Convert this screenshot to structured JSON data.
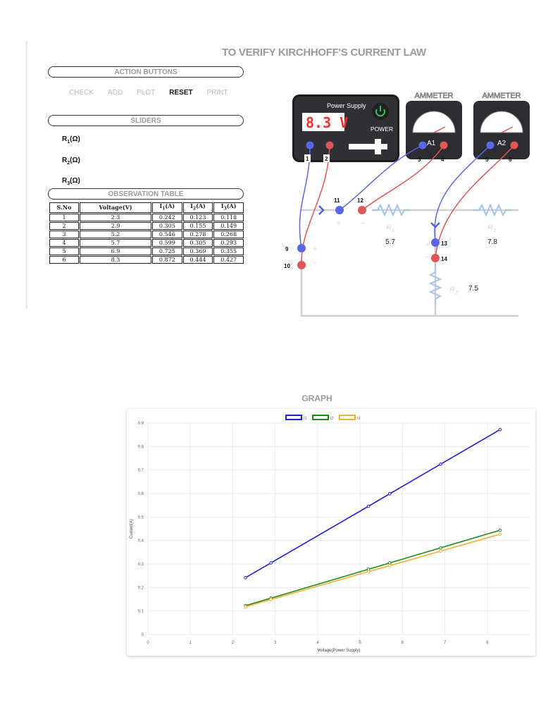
{
  "title": "TO VERIFY KIRCHHOFF'S CURRENT LAW",
  "action_buttons": {
    "header": "ACTION BUTTONS",
    "items": [
      {
        "label": "CHECK",
        "active": false
      },
      {
        "label": "ADD",
        "active": false
      },
      {
        "label": "PLOT",
        "active": false
      },
      {
        "label": "RESET",
        "active": true
      },
      {
        "label": "PRINT",
        "active": false
      }
    ]
  },
  "sliders": {
    "header": "SLIDERS",
    "r1": {
      "base": "R",
      "sub": "1",
      "unit": "(Ω)"
    },
    "r2": {
      "base": "R",
      "sub": "2",
      "unit": "(Ω)"
    },
    "r3": {
      "base": "R",
      "sub": "3",
      "unit": "(Ω)"
    }
  },
  "observation_table": {
    "header": "OBSERVATION TABLE",
    "columns": {
      "sno": "S.No",
      "voltage": "Voltage(V)",
      "i1": {
        "base": "I",
        "sub": "1",
        "unit": "(A)"
      },
      "i2": {
        "base": "I",
        "sub": "2",
        "unit": "(A)"
      },
      "i3": {
        "base": "I",
        "sub": "3",
        "unit": "(A)"
      }
    },
    "rows": [
      [
        "1",
        "2.3",
        "0.242",
        "0.123",
        "0.118"
      ],
      [
        "2",
        "2.9",
        "0.305",
        "0.155",
        "0.149"
      ],
      [
        "3",
        "5.2",
        "0.546",
        "0.278",
        "0.268"
      ],
      [
        "4",
        "5.7",
        "0.599",
        "0.305",
        "0.293"
      ],
      [
        "5",
        "6.9",
        "0.725",
        "0.369",
        "0.355"
      ],
      [
        "6",
        "8.3",
        "0.872",
        "0.444",
        "0.427"
      ]
    ]
  },
  "circuit": {
    "power_supply": {
      "label": "Power Supply",
      "display": "8.3 V",
      "power_label": "POWER",
      "terminal_plus": "1",
      "terminal_minus": "2"
    },
    "ammeters": [
      {
        "label": "AMMETER",
        "name": "A1",
        "terminals": [
          "3",
          "4"
        ]
      },
      {
        "label": "AMMETER",
        "name": "A2",
        "terminals": [
          "5",
          "6"
        ]
      }
    ],
    "nodes": [
      "9",
      "10",
      "11",
      "12",
      "13",
      "14"
    ],
    "resistors": [
      {
        "base": "R",
        "sub": "1",
        "value": "5.7"
      },
      {
        "base": "R",
        "sub": "2",
        "value": "7.8"
      },
      {
        "base": "R",
        "sub": "3",
        "value": "7.5"
      }
    ],
    "colors": {
      "positive": "#5b67e8",
      "negative": "#e05555",
      "device": "#2b2d31",
      "display": "#ff2a2a",
      "power_button": "#3cc25a",
      "wire": "#d0d0d0",
      "resistor": "#a9c7ec"
    }
  },
  "graph": {
    "title": "GRAPH"
  },
  "chart_data": {
    "type": "line",
    "x": [
      2.3,
      2.9,
      5.2,
      5.7,
      6.9,
      8.3
    ],
    "series": [
      {
        "name": "I1",
        "values": [
          0.242,
          0.305,
          0.546,
          0.599,
          0.725,
          0.872
        ],
        "color": "#1f1fd6"
      },
      {
        "name": "I2",
        "values": [
          0.123,
          0.155,
          0.278,
          0.305,
          0.369,
          0.444
        ],
        "color": "#1b8a1b"
      },
      {
        "name": "I3",
        "values": [
          0.118,
          0.149,
          0.268,
          0.293,
          0.355,
          0.427
        ],
        "color": "#f0b030"
      }
    ],
    "xlabel": "Voltage(Power Supply)",
    "ylabel": "Current(A)",
    "xticks": [
      "0",
      "1",
      "2",
      "3",
      "4",
      "5",
      "6",
      "7",
      "8"
    ],
    "yticks": [
      "0",
      "0.1",
      "0.2",
      "0.3",
      "0.4",
      "0.5",
      "0.6",
      "0.7",
      "0.8",
      "0.9"
    ],
    "xlim": [
      0,
      9
    ],
    "ylim": [
      0,
      0.9
    ],
    "grid": true,
    "legend": "top"
  }
}
